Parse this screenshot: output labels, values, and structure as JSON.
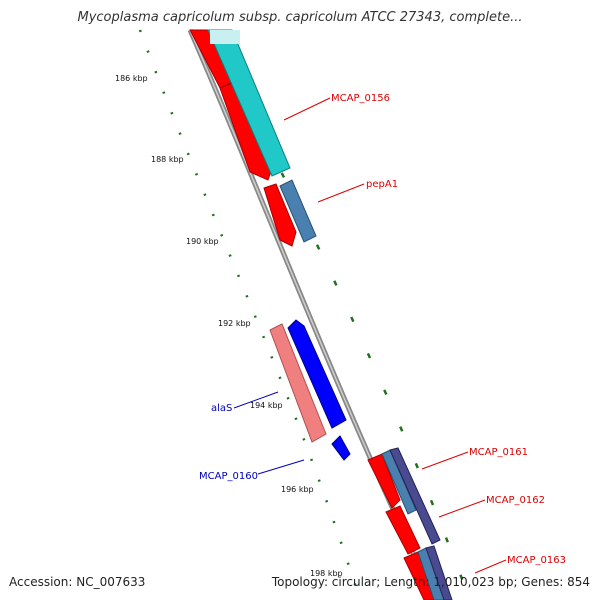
{
  "title": "Mycoplasma capricolum subsp. capricolum ATCC 27343, complete...",
  "footer": {
    "accession": "Accession: NC_007633",
    "summary": "Topology: circular; Length: 1,010,023 bp; Genes: 854"
  },
  "ticks": [
    "186 kbp",
    "188 kbp",
    "190 kbp",
    "192 kbp",
    "194 kbp",
    "196 kbp",
    "198 kbp"
  ],
  "genes": [
    {
      "label": "MCAP_0156",
      "color": "#dd0000"
    },
    {
      "label": "pepA1",
      "color": "#dd0000"
    },
    {
      "label": "alaS",
      "color": "#0000bb"
    },
    {
      "label": "MCAP_0160",
      "color": "#0000bb"
    },
    {
      "label": "MCAP_0161",
      "color": "#dd0000"
    },
    {
      "label": "MCAP_0162",
      "color": "#dd0000"
    },
    {
      "label": "MCAP_0163",
      "color": "#dd0000"
    }
  ],
  "colors": {
    "forward_cds": "#ff0000",
    "reverse_cds": "#0000ff",
    "reverse_cds_light": "#f08080",
    "cyan_feature": "#20c8c8",
    "steelblue_feature": "#4a80b0",
    "navy_feature": "#4a4a90",
    "backbone": "#888888",
    "tick_mark": "#207020"
  }
}
